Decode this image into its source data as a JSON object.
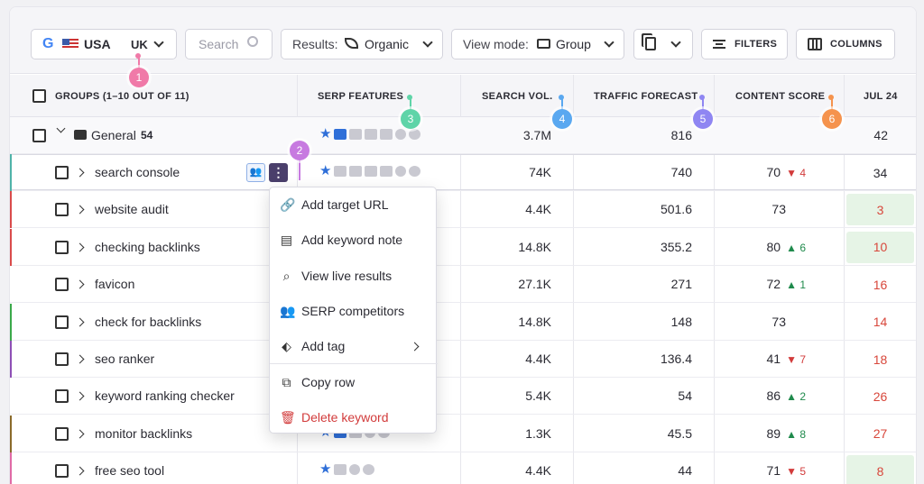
{
  "toolbar": {
    "country_code": "USA",
    "language": "UK",
    "search_placeholder": "Search",
    "results_label": "Results:",
    "results_value": "Organic",
    "viewmode_label": "View mode:",
    "viewmode_value": "Group",
    "filters_label": "FILTERS",
    "columns_label": "COLUMNS"
  },
  "header": {
    "groups": "GROUPS (1–10 OUT OF 11)",
    "serp": "SERP FEATURES",
    "search_vol": "SEARCH VOL.",
    "traffic": "TRAFFIC FORECAST",
    "content": "CONTENT SCORE",
    "date": "JUL 24"
  },
  "group_row": {
    "name": "General",
    "count": "54",
    "volume": "3.7M",
    "traffic": "816",
    "position": "42"
  },
  "rows": [
    {
      "keyword": "search console",
      "volume": "74K",
      "traffic": "740",
      "score": "70",
      "change": "4",
      "dir": "down",
      "position": "34",
      "accent": "#4fb3a9"
    },
    {
      "keyword": "website audit",
      "volume": "4.4K",
      "traffic": "501.6",
      "score": "73",
      "change": "",
      "dir": "",
      "position": "3",
      "accent": "#d94b4b"
    },
    {
      "keyword": "checking backlinks",
      "volume": "14.8K",
      "traffic": "355.2",
      "score": "80",
      "change": "6",
      "dir": "up",
      "position": "10",
      "accent": "#d94b4b"
    },
    {
      "keyword": "favicon",
      "volume": "27.1K",
      "traffic": "271",
      "score": "72",
      "change": "1",
      "dir": "up",
      "position": "16",
      "accent": ""
    },
    {
      "keyword": "check for backlinks",
      "volume": "14.8K",
      "traffic": "148",
      "score": "73",
      "change": "",
      "dir": "",
      "position": "14",
      "accent": "#3aa94a"
    },
    {
      "keyword": "seo ranker",
      "volume": "4.4K",
      "traffic": "136.4",
      "score": "41",
      "change": "7",
      "dir": "down",
      "position": "18",
      "accent": "#8e4fb5"
    },
    {
      "keyword": "keyword ranking checker",
      "volume": "5.4K",
      "traffic": "54",
      "score": "86",
      "change": "2",
      "dir": "up",
      "position": "26",
      "accent": ""
    },
    {
      "keyword": "monitor backlinks",
      "volume": "1.3K",
      "traffic": "45.5",
      "score": "89",
      "change": "8",
      "dir": "up",
      "position": "27",
      "accent": "#8a6a2a"
    },
    {
      "keyword": "free seo tool",
      "volume": "4.4K",
      "traffic": "44",
      "score": "71",
      "change": "5",
      "dir": "down",
      "position": "8",
      "accent": "#e06aa6"
    }
  ],
  "menu": {
    "items": [
      {
        "label": "Add target URL",
        "icon": "link-icon"
      },
      {
        "label": "Add keyword note",
        "icon": "note-icon"
      },
      {
        "label": "View live results",
        "icon": "search-icon"
      },
      {
        "label": "SERP competitors",
        "icon": "competitors-icon"
      },
      {
        "label": "Add tag",
        "icon": "tag-icon"
      },
      {
        "label": "Copy row",
        "icon": "copy-icon"
      },
      {
        "label": "Delete keyword",
        "icon": "trash-icon"
      }
    ]
  },
  "badges": [
    "1",
    "2",
    "3",
    "4",
    "5",
    "6"
  ],
  "colors": {
    "badge1": "#f07aa8",
    "badge2": "#c77ae0",
    "badge3": "#5fd4a8",
    "badge4": "#5aa8f0",
    "badge5": "#8f86f2",
    "badge6": "#f5934d",
    "up": "#1f8a4c",
    "down": "#d23b3b",
    "star": "#2f6fd8"
  }
}
